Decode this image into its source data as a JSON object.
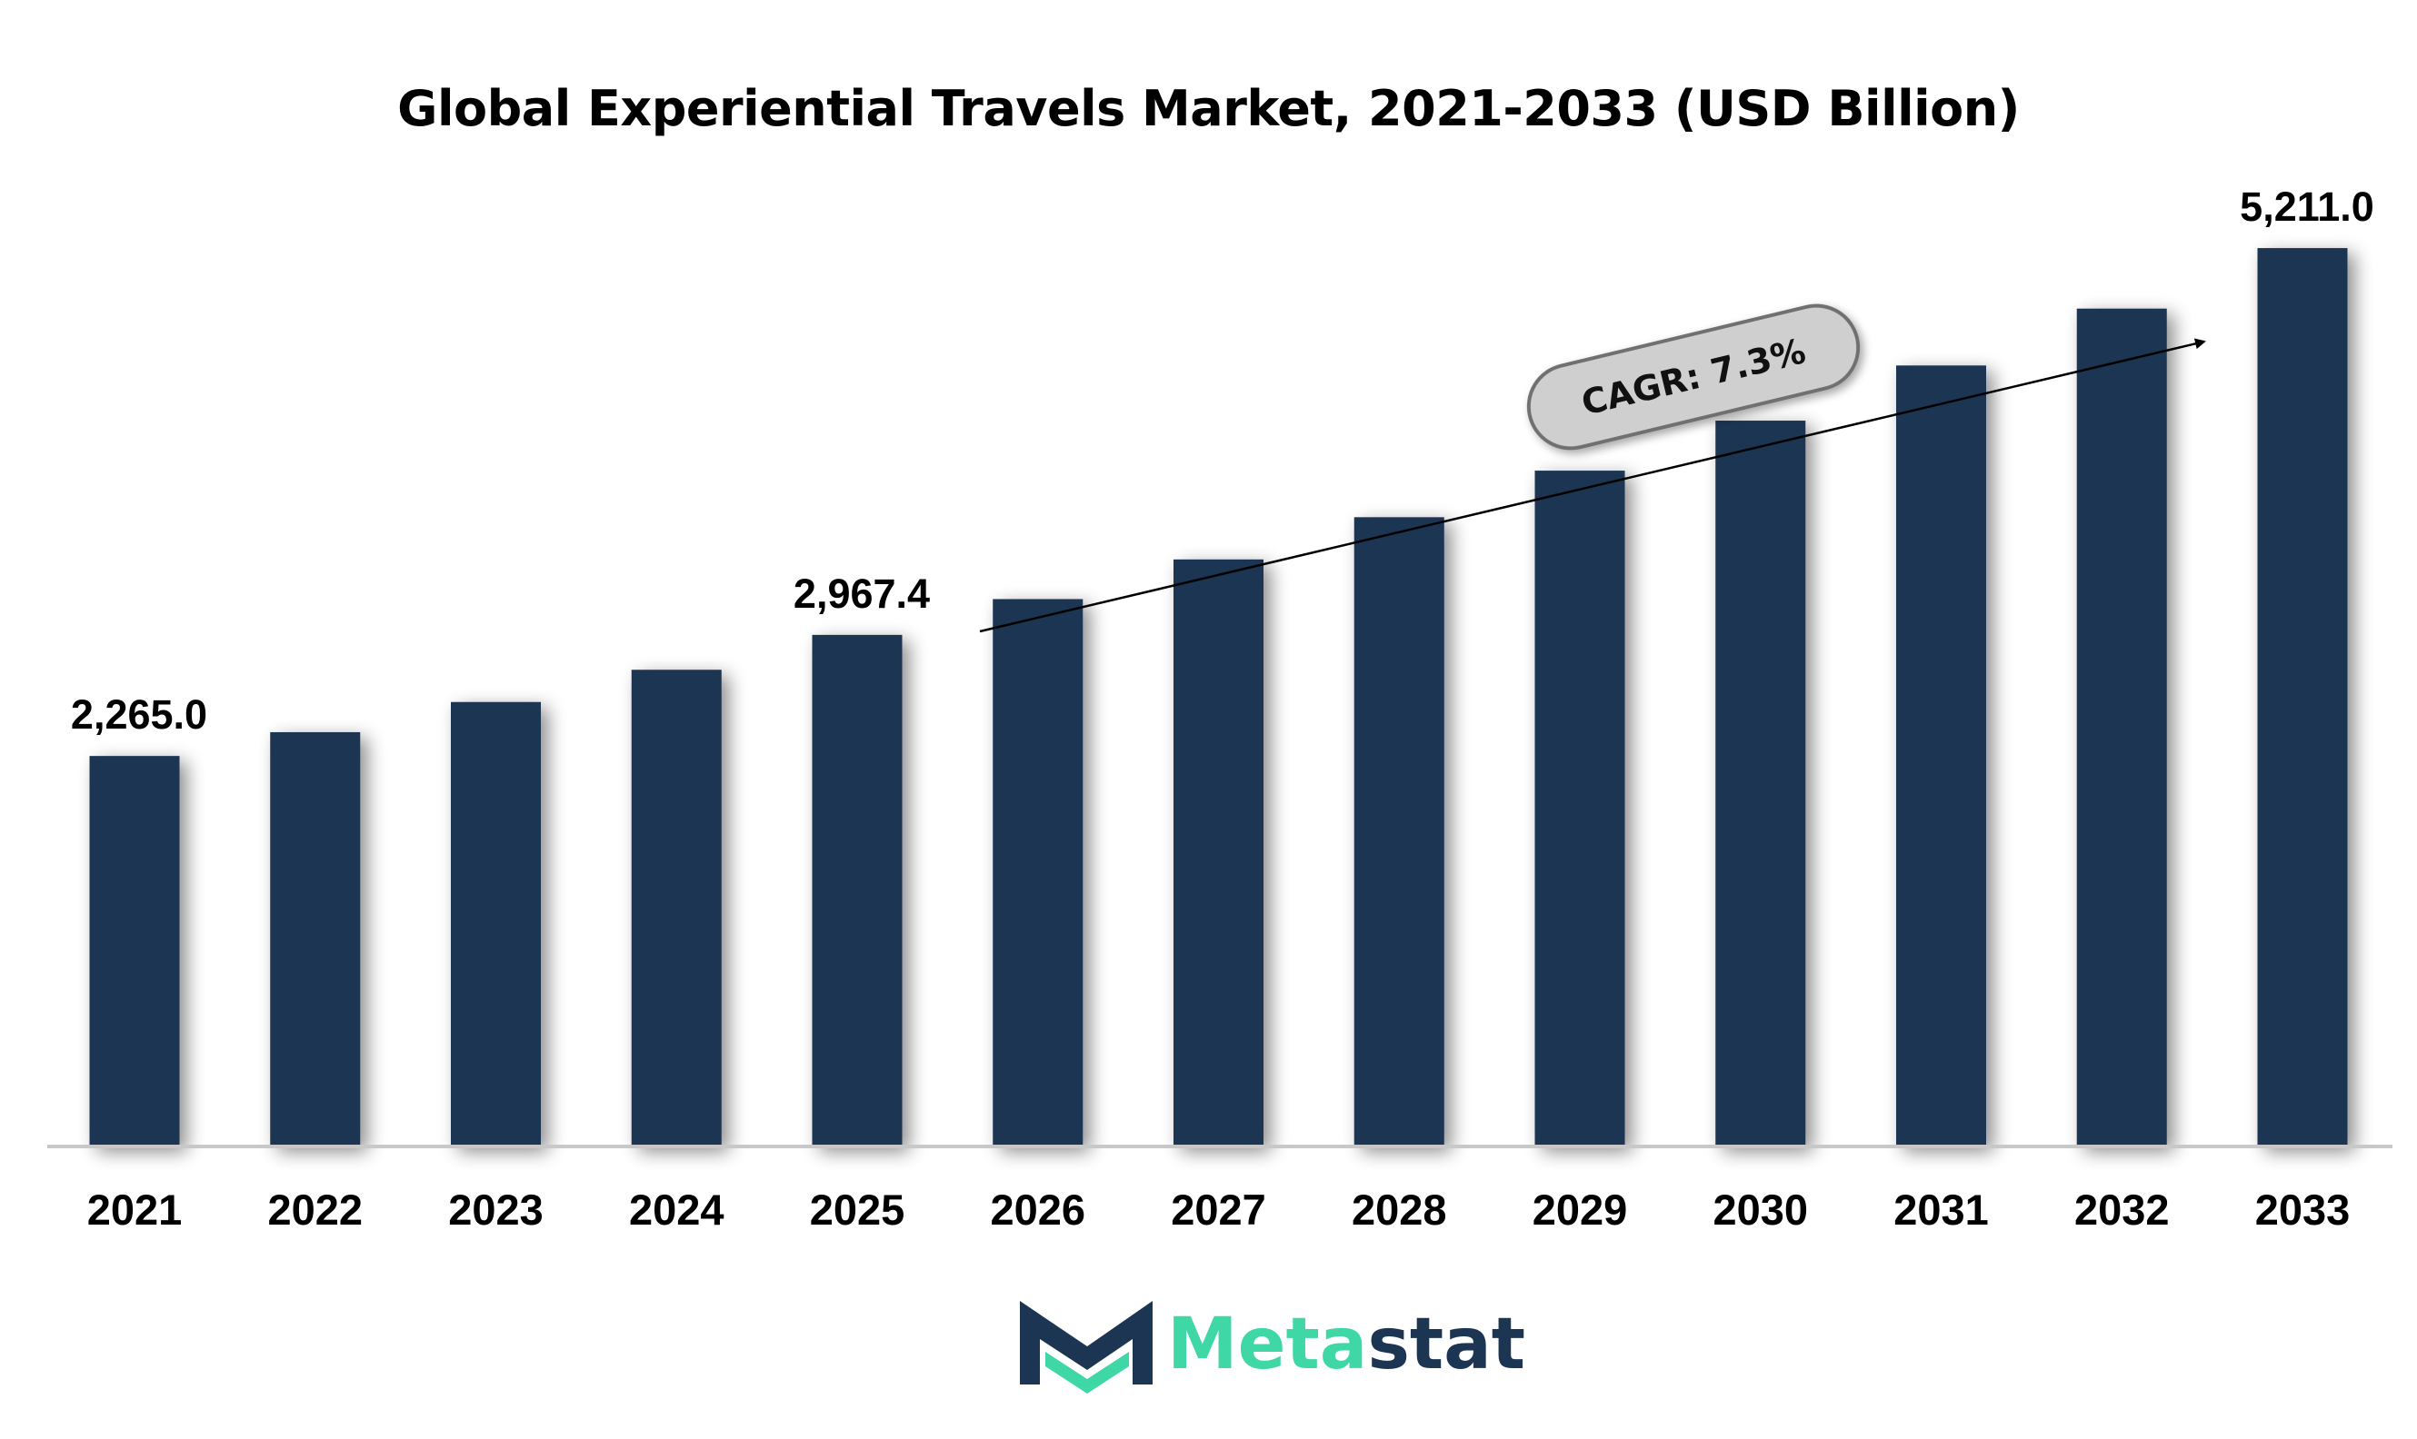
{
  "colors": {
    "bar": "#1c3553",
    "axis": "#c8c8c8",
    "cagr_fill": "#cfcfcf",
    "cagr_stroke": "#707070",
    "logo_dark": "#1c3553",
    "logo_teal": "#3fd7a5"
  },
  "chart_data": {
    "type": "bar",
    "title": "Global Experiential Travels Market, 2021-2033 (USD Billion)",
    "xlabel": "",
    "ylabel": "",
    "categories": [
      "2021",
      "2022",
      "2023",
      "2024",
      "2025",
      "2026",
      "2027",
      "2028",
      "2029",
      "2030",
      "2031",
      "2032",
      "2033"
    ],
    "values": [
      2265.0,
      2403.0,
      2578.0,
      2765.0,
      2967.4,
      3175.0,
      3405.0,
      3650.0,
      3920.0,
      4210.0,
      4530.0,
      4860.0,
      5211.0
    ],
    "data_labels": [
      {
        "index": 0,
        "text": "2,265.0"
      },
      {
        "index": 4,
        "text": "2,967.4"
      },
      {
        "index": 12,
        "text": "5,211.0"
      }
    ],
    "annotation": "CAGR: 7.3%",
    "ylim": [
      0,
      5500
    ],
    "grid": false,
    "legend": "none"
  },
  "logo": {
    "part1": "Meta",
    "part2": "stat"
  }
}
